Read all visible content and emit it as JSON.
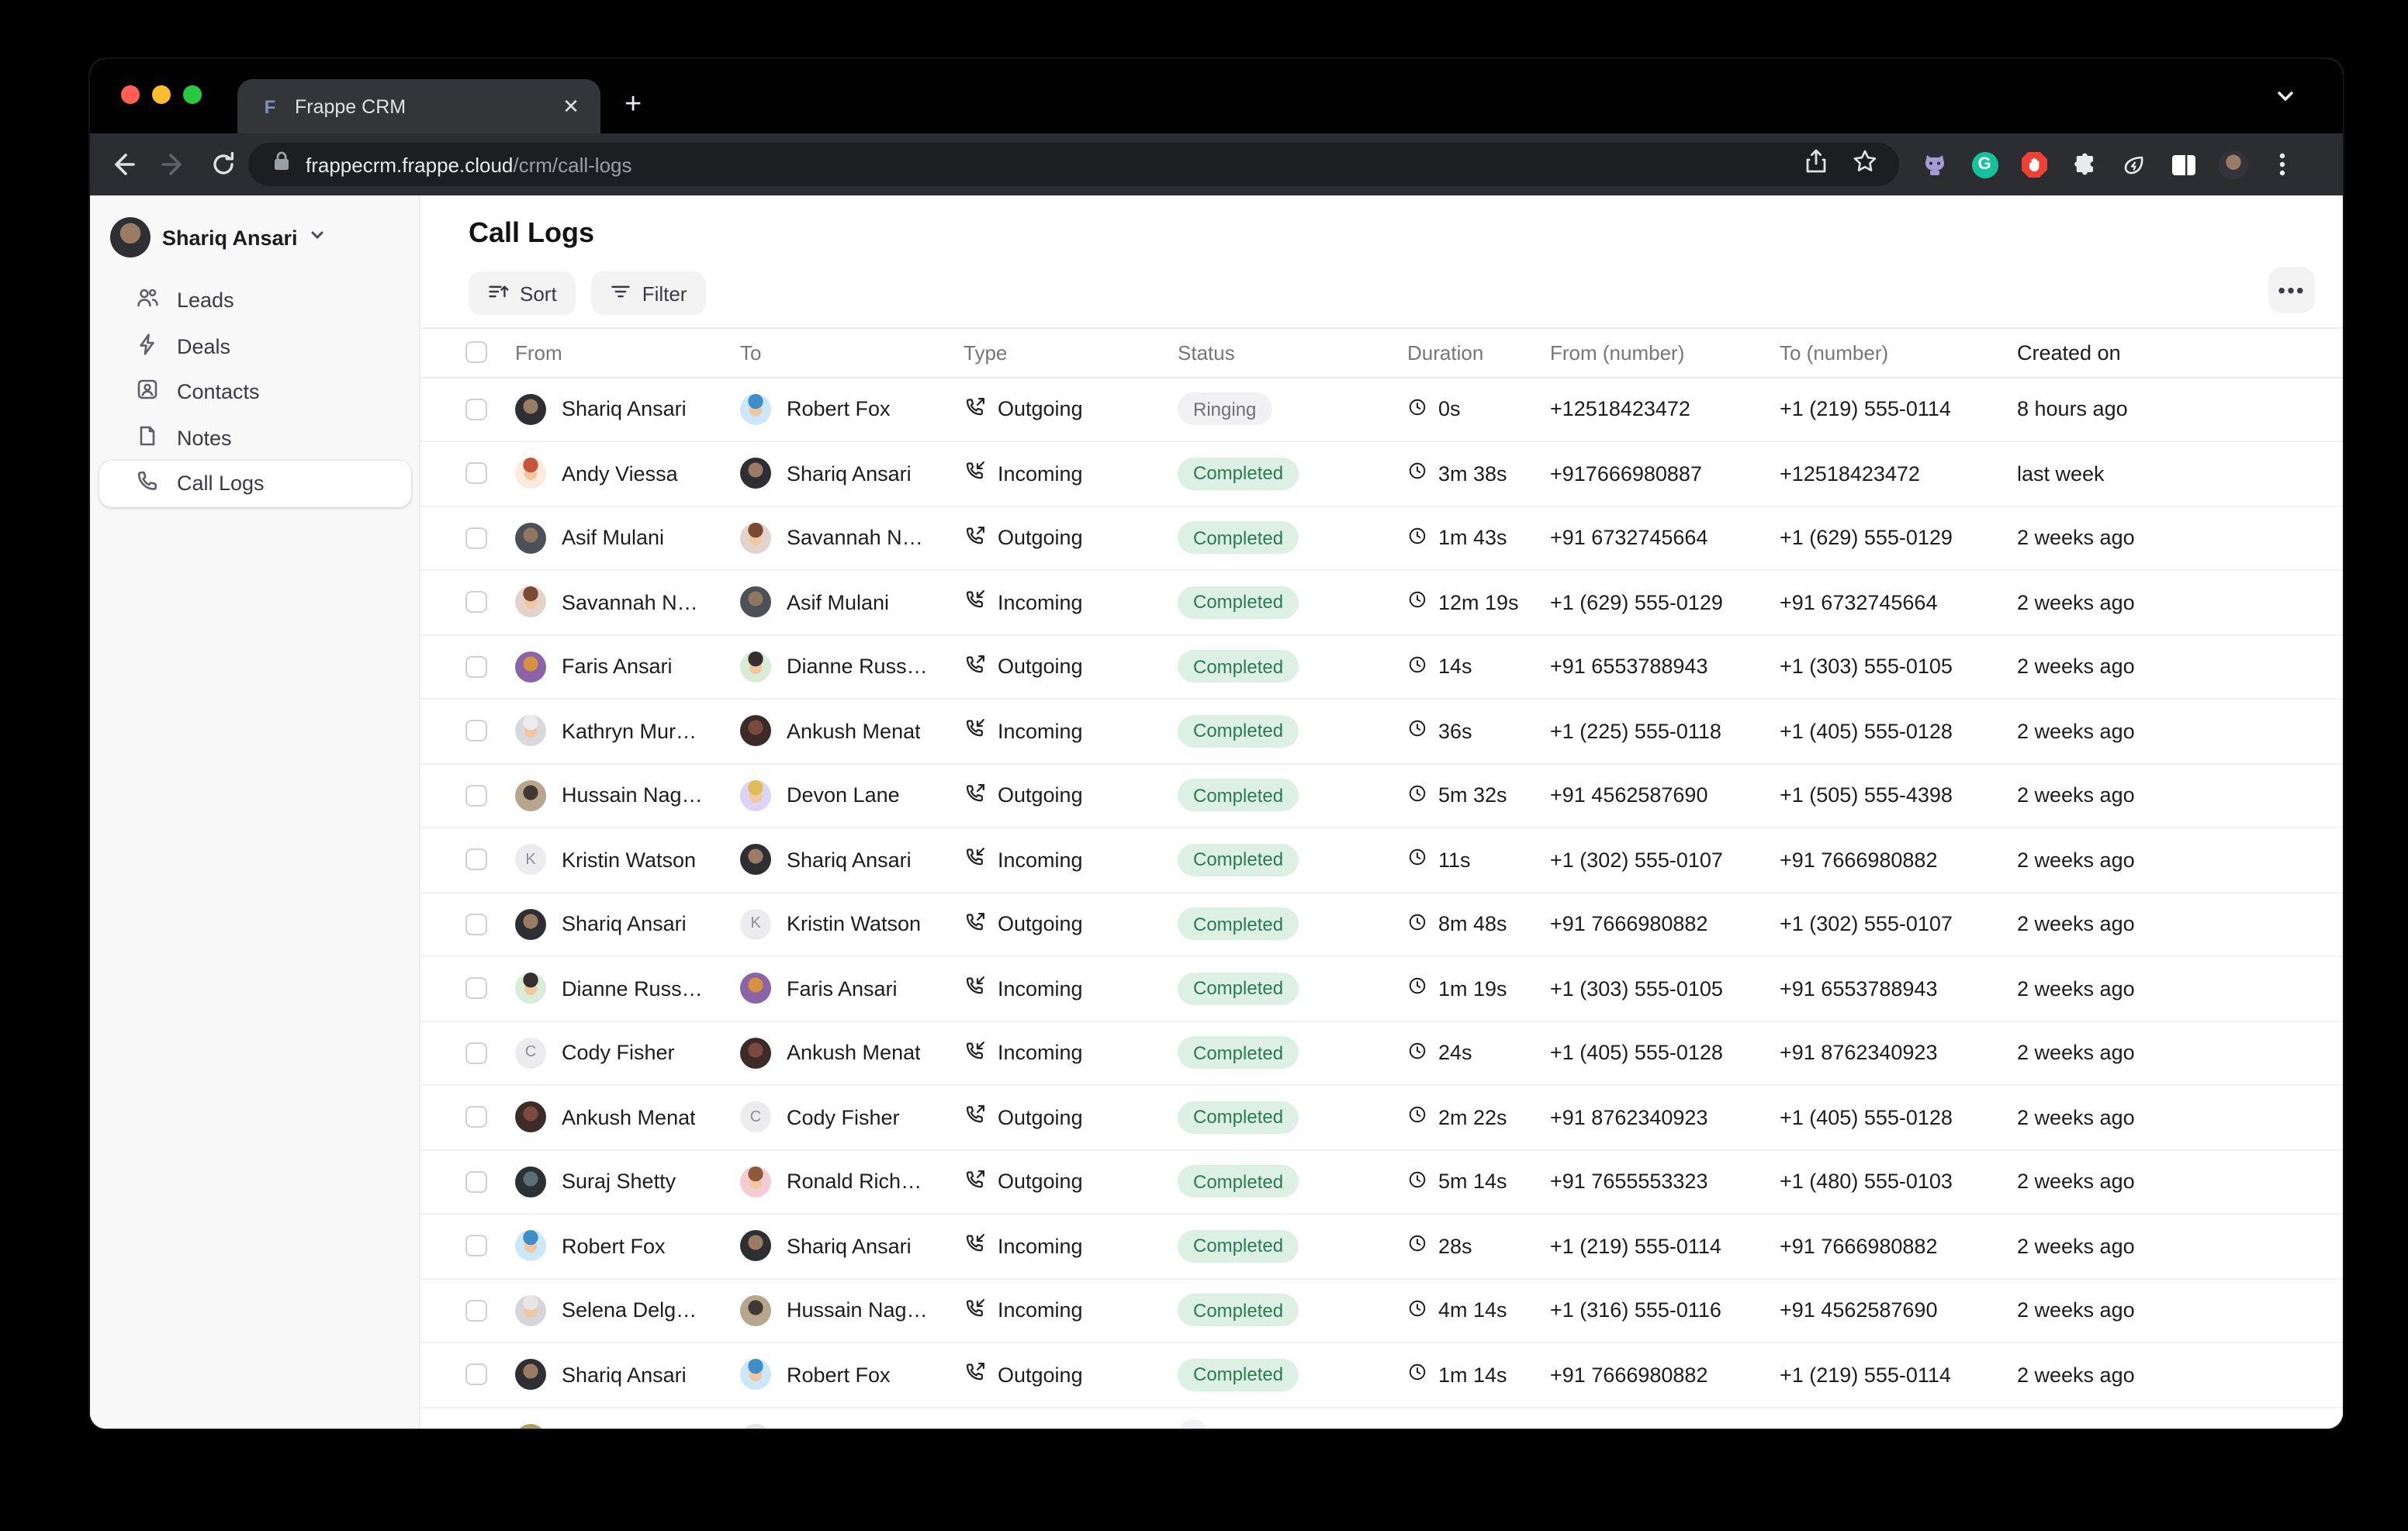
{
  "browser": {
    "tab_title": "Frappe CRM",
    "favicon_letter": "F",
    "new_tab_label": "+",
    "url_host": "frappecrm.frappe.cloud",
    "url_path": "/crm/call-logs",
    "extension_icons": [
      "github-icon",
      "grammarly-icon",
      "adblock-icon",
      "extensions-puzzle-icon",
      "energy-saver-icon",
      "side-panel-icon",
      "profile-avatar",
      "menu-dots-icon"
    ],
    "traffic_colors": {
      "close": "#ff5f57",
      "min": "#febc2e",
      "max": "#28c840"
    }
  },
  "sidebar": {
    "user": {
      "name": "Shariq Ansari"
    },
    "items": [
      {
        "label": "Leads",
        "icon": "users-icon",
        "active": false
      },
      {
        "label": "Deals",
        "icon": "zap-icon",
        "active": false
      },
      {
        "label": "Contacts",
        "icon": "contact-icon",
        "active": false
      },
      {
        "label": "Notes",
        "icon": "note-icon",
        "active": false
      },
      {
        "label": "Call Logs",
        "icon": "phone-icon",
        "active": true
      }
    ]
  },
  "header": {
    "title": "Call Logs",
    "sort_label": "Sort",
    "filter_label": "Filter",
    "more_label": "•••"
  },
  "table": {
    "columns": [
      "From",
      "To",
      "Type",
      "Status",
      "Duration",
      "From (number)",
      "To (number)",
      "Created on"
    ],
    "status_colors": {
      "completed_bg": "#ddf0e4",
      "completed_text": "#2b7a52",
      "ringing_bg": "#f1f1f3",
      "ringing_text": "#6f6f76"
    },
    "rows": [
      {
        "from": {
          "name": "Shariq Ansari",
          "av": {
            "k": "photo",
            "a": "#2e2f33",
            "b": "#9a7b63"
          }
        },
        "to": {
          "name": "Robert Fox",
          "av": {
            "k": "memoji",
            "bg": "#cbe7f8",
            "hair": "#3e8ec9"
          }
        },
        "type": "Outgoing",
        "status": "Ringing",
        "badge": "gray",
        "duration": "0s",
        "from_number": "+12518423472",
        "to_number": "+1 (219) 555-0114",
        "created": "8 hours ago"
      },
      {
        "from": {
          "name": "Andy Viessa",
          "av": {
            "k": "memoji",
            "bg": "#fbeadd",
            "hair": "#c4543a"
          }
        },
        "to": {
          "name": "Shariq Ansari",
          "av": {
            "k": "photo",
            "a": "#2e2f33",
            "b": "#9a7b63"
          }
        },
        "type": "Incoming",
        "status": "Completed",
        "badge": "green",
        "duration": "3m 38s",
        "from_number": "+917666980887",
        "to_number": "+12518423472",
        "created": "last week"
      },
      {
        "from": {
          "name": "Asif Mulani",
          "av": {
            "k": "photo",
            "a": "#4e5058",
            "b": "#8c7761"
          }
        },
        "to": {
          "name": "Savannah N…",
          "av": {
            "k": "memoji",
            "bg": "#e3d4cb",
            "hair": "#7a4b32"
          }
        },
        "type": "Outgoing",
        "status": "Completed",
        "badge": "green",
        "duration": "1m 43s",
        "from_number": "+91 6732745664",
        "to_number": "+1 (629) 555-0129",
        "created": "2 weeks ago"
      },
      {
        "from": {
          "name": "Savannah N…",
          "av": {
            "k": "memoji",
            "bg": "#e3d4cb",
            "hair": "#7a4b32"
          }
        },
        "to": {
          "name": "Asif Mulani",
          "av": {
            "k": "photo",
            "a": "#4e5058",
            "b": "#8c7761"
          }
        },
        "type": "Incoming",
        "status": "Completed",
        "badge": "green",
        "duration": "12m 19s",
        "from_number": "+1 (629) 555-0129",
        "to_number": "+91 6732745664",
        "created": "2 weeks ago"
      },
      {
        "from": {
          "name": "Faris Ansari",
          "av": {
            "k": "photo",
            "a": "#8a63a8",
            "b": "#d8913f"
          }
        },
        "to": {
          "name": "Dianne Russ…",
          "av": {
            "k": "memoji",
            "bg": "#d9ecd6",
            "hair": "#35302d"
          }
        },
        "type": "Outgoing",
        "status": "Completed",
        "badge": "green",
        "duration": "14s",
        "from_number": "+91 6553788943",
        "to_number": "+1 (303) 555-0105",
        "created": "2 weeks ago"
      },
      {
        "from": {
          "name": "Kathryn Mur…",
          "av": {
            "k": "memoji",
            "bg": "#d9d9dd",
            "hair": "#ececef"
          }
        },
        "to": {
          "name": "Ankush Menat",
          "av": {
            "k": "photo",
            "a": "#3c2b28",
            "b": "#7a4a40"
          }
        },
        "type": "Incoming",
        "status": "Completed",
        "badge": "green",
        "duration": "36s",
        "from_number": "+1 (225) 555-0118",
        "to_number": "+1 (405) 555-0128",
        "created": "2 weeks ago"
      },
      {
        "from": {
          "name": "Hussain Nag…",
          "av": {
            "k": "photo",
            "a": "#b5a68c",
            "b": "#3f3833"
          }
        },
        "to": {
          "name": "Devon Lane",
          "av": {
            "k": "memoji",
            "bg": "#ddd4f5",
            "hair": "#e0bc54"
          }
        },
        "type": "Outgoing",
        "status": "Completed",
        "badge": "green",
        "duration": "5m 32s",
        "from_number": "+91 4562587690",
        "to_number": "+1 (505) 555-4398",
        "created": "2 weeks ago"
      },
      {
        "from": {
          "name": "Kristin Watson",
          "av": {
            "k": "initial",
            "bg": "#ececee",
            "ch": "K"
          }
        },
        "to": {
          "name": "Shariq Ansari",
          "av": {
            "k": "photo",
            "a": "#2e2f33",
            "b": "#9a7b63"
          }
        },
        "type": "Incoming",
        "status": "Completed",
        "badge": "green",
        "duration": "11s",
        "from_number": "+1 (302) 555-0107",
        "to_number": "+91 7666980882",
        "created": "2 weeks ago"
      },
      {
        "from": {
          "name": "Shariq Ansari",
          "av": {
            "k": "photo",
            "a": "#2e2f33",
            "b": "#9a7b63"
          }
        },
        "to": {
          "name": "Kristin Watson",
          "av": {
            "k": "initial",
            "bg": "#ececee",
            "ch": "K"
          }
        },
        "type": "Outgoing",
        "status": "Completed",
        "badge": "green",
        "duration": "8m 48s",
        "from_number": "+91 7666980882",
        "to_number": "+1 (302) 555-0107",
        "created": "2 weeks ago"
      },
      {
        "from": {
          "name": "Dianne Russ…",
          "av": {
            "k": "memoji",
            "bg": "#d9ecd6",
            "hair": "#35302d"
          }
        },
        "to": {
          "name": "Faris Ansari",
          "av": {
            "k": "photo",
            "a": "#8a63a8",
            "b": "#d8913f"
          }
        },
        "type": "Incoming",
        "status": "Completed",
        "badge": "green",
        "duration": "1m 19s",
        "from_number": "+1 (303) 555-0105",
        "to_number": "+91 6553788943",
        "created": "2 weeks ago"
      },
      {
        "from": {
          "name": "Cody Fisher",
          "av": {
            "k": "initial",
            "bg": "#ececee",
            "ch": "C"
          }
        },
        "to": {
          "name": "Ankush Menat",
          "av": {
            "k": "photo",
            "a": "#3c2b28",
            "b": "#7a4a40"
          }
        },
        "type": "Incoming",
        "status": "Completed",
        "badge": "green",
        "duration": "24s",
        "from_number": "+1 (405) 555-0128",
        "to_number": "+91 8762340923",
        "created": "2 weeks ago"
      },
      {
        "from": {
          "name": "Ankush Menat",
          "av": {
            "k": "photo",
            "a": "#3c2b28",
            "b": "#7a4a40"
          }
        },
        "to": {
          "name": "Cody Fisher",
          "av": {
            "k": "initial",
            "bg": "#ececee",
            "ch": "C"
          }
        },
        "type": "Outgoing",
        "status": "Completed",
        "badge": "green",
        "duration": "2m 22s",
        "from_number": "+91 8762340923",
        "to_number": "+1 (405) 555-0128",
        "created": "2 weeks ago"
      },
      {
        "from": {
          "name": "Suraj Shetty",
          "av": {
            "k": "photo",
            "a": "#2c3136",
            "b": "#5f6d74"
          }
        },
        "to": {
          "name": "Ronald Rich…",
          "av": {
            "k": "memoji",
            "bg": "#f6ccd4",
            "hair": "#8a5a3a"
          }
        },
        "type": "Outgoing",
        "status": "Completed",
        "badge": "green",
        "duration": "5m 14s",
        "from_number": "+91 7655553323",
        "to_number": "+1 (480) 555-0103",
        "created": "2 weeks ago"
      },
      {
        "from": {
          "name": "Robert Fox",
          "av": {
            "k": "memoji",
            "bg": "#cbe7f8",
            "hair": "#3e8ec9"
          }
        },
        "to": {
          "name": "Shariq Ansari",
          "av": {
            "k": "photo",
            "a": "#2e2f33",
            "b": "#9a7b63"
          }
        },
        "type": "Incoming",
        "status": "Completed",
        "badge": "green",
        "duration": "28s",
        "from_number": "+1 (219) 555-0114",
        "to_number": "+91 7666980882",
        "created": "2 weeks ago"
      },
      {
        "from": {
          "name": "Selena Delg…",
          "av": {
            "k": "memoji",
            "bg": "#d6d6da",
            "hair": "#e8e6e4"
          }
        },
        "to": {
          "name": "Hussain Nag…",
          "av": {
            "k": "photo",
            "a": "#b5a68c",
            "b": "#3f3833"
          }
        },
        "type": "Incoming",
        "status": "Completed",
        "badge": "green",
        "duration": "4m 14s",
        "from_number": "+1 (316) 555-0116",
        "to_number": "+91 4562587690",
        "created": "2 weeks ago"
      },
      {
        "from": {
          "name": "Shariq Ansari",
          "av": {
            "k": "photo",
            "a": "#2e2f33",
            "b": "#9a7b63"
          }
        },
        "to": {
          "name": "Robert Fox",
          "av": {
            "k": "memoji",
            "bg": "#cbe7f8",
            "hair": "#3e8ec9"
          }
        },
        "type": "Outgoing",
        "status": "Completed",
        "badge": "green",
        "duration": "1m 14s",
        "from_number": "+91 7666980882",
        "to_number": "+1 (219) 555-0114",
        "created": "2 weeks ago"
      },
      {
        "from": {
          "name": "",
          "av": {
            "k": "plain",
            "bg": "#a9a068"
          }
        },
        "to": {
          "name": "",
          "av": {
            "k": "plain",
            "bg": "#e4e4e7"
          }
        },
        "type": "",
        "status": "",
        "badge": "gray",
        "duration": "",
        "from_number": "",
        "to_number": "",
        "created": ""
      }
    ]
  }
}
